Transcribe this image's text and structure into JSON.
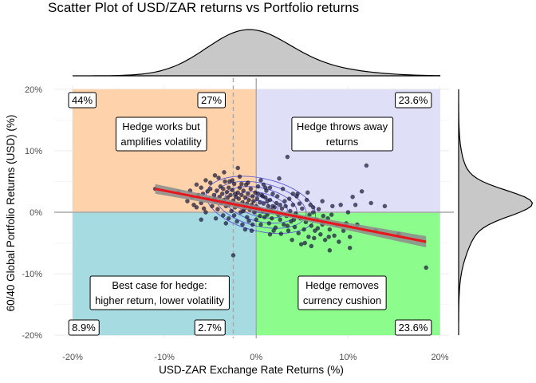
{
  "chart_data": {
    "type": "scatter",
    "title": "Scatter Plot of USD/ZAR returns vs Portfolio returns",
    "xlabel": "USD-ZAR Exchange Rate Returns (%)",
    "ylabel": "60/40 Global Portfolio Returns (USD) (%)",
    "xlim": [
      -0.22,
      0.21
    ],
    "ylim": [
      -0.205,
      0.205
    ],
    "x_ticks": [
      -0.2,
      -0.1,
      0.0,
      0.1,
      0.2
    ],
    "x_tick_labels": [
      "-20%",
      "-10%",
      "0%",
      "10%",
      "20%"
    ],
    "y_ticks": [
      -0.2,
      -0.1,
      0.0,
      0.1,
      0.2
    ],
    "y_tick_labels": [
      "-20%",
      "-10%",
      "0%",
      "10%",
      "20%"
    ],
    "grid": true,
    "mean_x_line": -0.025,
    "quadrants": [
      {
        "name": "top-left",
        "color": "#FED2AA",
        "label_lines": [
          "Hedge works but",
          "amplifies volatility"
        ],
        "percent": "44%"
      },
      {
        "name": "top-center",
        "percent": "27%"
      },
      {
        "name": "top-right",
        "color": "#DFDFF7",
        "label_lines": [
          "Hedge throws away",
          "returns"
        ],
        "percent": "23.6%"
      },
      {
        "name": "bottom-left",
        "color": "#A6DBE1",
        "label_lines": [
          "Best case for hedge:",
          "higher return, lower volatility"
        ],
        "percent": "8.9%"
      },
      {
        "name": "bottom-center",
        "percent": "2.7%"
      },
      {
        "name": "bottom-right",
        "color": "#8CFC8C",
        "label_lines": [
          "Hedge removes",
          "currency cushion"
        ],
        "percent": "23.6%"
      }
    ],
    "regression": {
      "color": "#E8161C",
      "x_start": -0.11,
      "y_start": 0.038,
      "x_end": 0.185,
      "y_end": -0.048,
      "band_color": "#8C8C8C"
    },
    "density_contour_color": "#5A5ADC",
    "point_color": "#1A1A40",
    "points": [
      [
        -0.11,
        0.038
      ],
      [
        -0.085,
        0.032
      ],
      [
        -0.07,
        0.025
      ],
      [
        -0.065,
        0.045
      ],
      [
        -0.06,
        0.015
      ],
      [
        -0.058,
        0.03
      ],
      [
        -0.055,
        0.052
      ],
      [
        -0.052,
        0.022
      ],
      [
        -0.05,
        0.038
      ],
      [
        -0.048,
        0.01
      ],
      [
        -0.046,
        0.028
      ],
      [
        -0.045,
        0.06
      ],
      [
        -0.044,
        0.018
      ],
      [
        -0.043,
        0.035
      ],
      [
        -0.042,
        0.005
      ],
      [
        -0.04,
        0.025
      ],
      [
        -0.039,
        0.042
      ],
      [
        -0.038,
        0.015
      ],
      [
        -0.037,
        0.03
      ],
      [
        -0.036,
        -0.005
      ],
      [
        -0.035,
        0.02
      ],
      [
        -0.034,
        0.05
      ],
      [
        -0.033,
        0.01
      ],
      [
        -0.032,
        0.033
      ],
      [
        -0.031,
        0.024
      ],
      [
        -0.03,
        -0.01
      ],
      [
        -0.03,
        0.04
      ],
      [
        -0.029,
        0.015
      ],
      [
        -0.028,
        0.028
      ],
      [
        -0.027,
        0.002
      ],
      [
        -0.026,
        0.036
      ],
      [
        -0.025,
        0.019
      ],
      [
        -0.024,
        0.046
      ],
      [
        -0.023,
        0.008
      ],
      [
        -0.022,
        0.025
      ],
      [
        -0.021,
        -0.015
      ],
      [
        -0.02,
        0.032
      ],
      [
        -0.02,
        0.012
      ],
      [
        -0.019,
        0.022
      ],
      [
        -0.018,
        0.04
      ],
      [
        -0.017,
        0.0
      ],
      [
        -0.016,
        0.028
      ],
      [
        -0.015,
        0.016
      ],
      [
        -0.015,
        -0.02
      ],
      [
        -0.014,
        0.035
      ],
      [
        -0.013,
        0.006
      ],
      [
        -0.012,
        0.024
      ],
      [
        -0.011,
        0.045
      ],
      [
        -0.01,
        0.014
      ],
      [
        -0.01,
        -0.008
      ],
      [
        -0.009,
        0.03
      ],
      [
        -0.008,
        0.02
      ],
      [
        -0.007,
        0.004
      ],
      [
        -0.006,
        0.038
      ],
      [
        -0.005,
        0.012
      ],
      [
        -0.005,
        -0.03
      ],
      [
        -0.004,
        0.026
      ],
      [
        -0.003,
        0.018
      ],
      [
        -0.002,
        0.0
      ],
      [
        -0.001,
        0.032
      ],
      [
        0.0,
        0.01
      ],
      [
        0.0,
        -0.012
      ],
      [
        0.001,
        0.022
      ],
      [
        0.002,
        0.042
      ],
      [
        0.003,
        0.006
      ],
      [
        0.004,
        0.016
      ],
      [
        0.005,
        -0.02
      ],
      [
        0.006,
        0.028
      ],
      [
        0.007,
        0.002
      ],
      [
        0.008,
        0.014
      ],
      [
        0.009,
        -0.008
      ],
      [
        0.01,
        0.024
      ],
      [
        0.011,
        0.035
      ],
      [
        0.012,
        -0.004
      ],
      [
        0.013,
        0.01
      ],
      [
        0.014,
        -0.018
      ],
      [
        0.015,
        0.02
      ],
      [
        0.016,
        0.004
      ],
      [
        0.017,
        -0.01
      ],
      [
        0.018,
        0.03
      ],
      [
        0.02,
        0.008
      ],
      [
        0.021,
        -0.025
      ],
      [
        0.022,
        0.015
      ],
      [
        0.024,
        -0.004
      ],
      [
        0.025,
        0.055
      ],
      [
        0.026,
        -0.012
      ],
      [
        0.028,
        0.006
      ],
      [
        0.03,
        -0.02
      ],
      [
        0.031,
        0.018
      ],
      [
        0.033,
        -0.006
      ],
      [
        0.034,
        0.09
      ],
      [
        0.035,
        -0.03
      ],
      [
        0.037,
        0.002
      ],
      [
        0.038,
        -0.015
      ],
      [
        0.04,
        0.012
      ],
      [
        0.042,
        -0.024
      ],
      [
        0.043,
        -0.002
      ],
      [
        0.045,
        0.03
      ],
      [
        0.046,
        -0.034
      ],
      [
        0.048,
        -0.01
      ],
      [
        0.05,
        0.006
      ],
      [
        0.052,
        -0.028
      ],
      [
        0.054,
        -0.016
      ],
      [
        0.055,
        0.02
      ],
      [
        0.057,
        -0.04
      ],
      [
        0.058,
        -0.004
      ],
      [
        0.06,
        -0.022
      ],
      [
        0.062,
        0.008
      ],
      [
        0.064,
        -0.03
      ],
      [
        0.066,
        -0.012
      ],
      [
        0.068,
        0.005
      ],
      [
        0.07,
        -0.036
      ],
      [
        0.072,
        -0.02
      ],
      [
        0.075,
        -0.045
      ],
      [
        0.078,
        -0.01
      ],
      [
        0.08,
        -0.028
      ],
      [
        0.083,
        0.01
      ],
      [
        0.085,
        -0.038
      ],
      [
        0.088,
        -0.02
      ],
      [
        0.09,
        -0.048
      ],
      [
        0.095,
        -0.03
      ],
      [
        0.1,
        0.0
      ],
      [
        0.102,
        -0.04
      ],
      [
        0.105,
        0.025
      ],
      [
        0.11,
        -0.02
      ],
      [
        0.115,
        0.034
      ],
      [
        0.12,
        0.076
      ],
      [
        0.125,
        0.015
      ],
      [
        0.13,
        -0.03
      ],
      [
        0.14,
        0.01
      ],
      [
        0.155,
        -0.035
      ],
      [
        0.185,
        -0.09
      ],
      [
        -0.065,
        0.008
      ],
      [
        -0.06,
        0.04
      ],
      [
        -0.055,
        0.0
      ],
      [
        -0.05,
        0.048
      ],
      [
        -0.047,
        0.02
      ],
      [
        -0.041,
        0.056
      ],
      [
        -0.036,
        0.038
      ],
      [
        -0.033,
        -0.018
      ],
      [
        -0.029,
        0.05
      ],
      [
        -0.024,
        -0.005
      ],
      [
        -0.018,
        0.058
      ],
      [
        -0.014,
        0.002
      ],
      [
        -0.009,
        0.048
      ],
      [
        -0.004,
        -0.02
      ],
      [
        0.002,
        0.03
      ],
      [
        0.008,
        0.045
      ],
      [
        0.012,
        0.018
      ],
      [
        0.019,
        -0.03
      ],
      [
        0.023,
        0.026
      ],
      [
        0.027,
        -0.035
      ],
      [
        0.032,
        0.01
      ],
      [
        0.036,
        0.022
      ],
      [
        0.041,
        -0.012
      ],
      [
        0.047,
        0.014
      ],
      [
        0.053,
        -0.05
      ],
      [
        0.059,
        0.012
      ],
      [
        0.063,
        -0.042
      ],
      [
        0.067,
        -0.026
      ],
      [
        0.073,
        -0.006
      ],
      [
        0.079,
        -0.04
      ],
      [
        -0.075,
        0.018
      ],
      [
        -0.072,
        0.035
      ],
      [
        -0.068,
        0.012
      ],
      [
        -0.063,
        0.028
      ],
      [
        -0.057,
        0.006
      ],
      [
        -0.053,
        0.034
      ],
      [
        -0.012,
        -0.028
      ],
      [
        0.005,
        0.052
      ],
      [
        0.015,
        -0.036
      ],
      [
        0.029,
        0.038
      ],
      [
        0.039,
        -0.045
      ],
      [
        0.049,
        -0.052
      ],
      [
        -0.02,
        0.072
      ],
      [
        0.06,
        -0.055
      ],
      [
        -0.035,
        0.065
      ],
      [
        0.015,
        0.04
      ],
      [
        0.044,
        0.026
      ],
      [
        0.056,
        0.032
      ],
      [
        -0.06,
        -0.012
      ],
      [
        -0.044,
        -0.01
      ],
      [
        -0.03,
        0.012
      ],
      [
        -0.026,
        0.052
      ],
      [
        -0.016,
        0.046
      ],
      [
        -0.008,
        -0.014
      ],
      [
        0.004,
        -0.006
      ],
      [
        0.01,
        0.04
      ],
      [
        0.018,
        0.01
      ],
      [
        0.026,
        0.012
      ],
      [
        0.034,
        -0.022
      ],
      [
        0.04,
        0.03
      ],
      [
        0.062,
        0.0
      ],
      [
        0.072,
        0.018
      ],
      [
        0.082,
        -0.004
      ],
      [
        0.092,
        0.012
      ],
      [
        0.098,
        -0.018
      ],
      [
        0.108,
        0.012
      ],
      [
        -0.025,
        -0.07
      ],
      [
        0.08,
        -0.062
      ],
      [
        0.102,
        -0.058
      ],
      [
        -0.045,
        0.022
      ],
      [
        -0.023,
        0.03
      ],
      [
        0.007,
        0.026
      ]
    ]
  }
}
